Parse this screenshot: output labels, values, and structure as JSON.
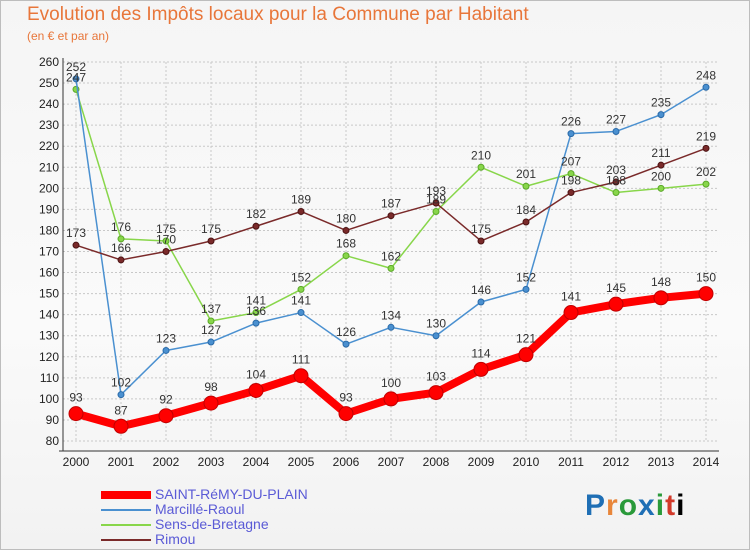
{
  "chart_data": {
    "type": "line",
    "title": "Evolution des Impôts locaux pour la Commune par Habitant",
    "subtitle": "(en € et par an)",
    "x": [
      2000,
      2001,
      2002,
      2003,
      2004,
      2005,
      2006,
      2007,
      2008,
      2009,
      2010,
      2011,
      2012,
      2013,
      2014
    ],
    "ylim": [
      80,
      260
    ],
    "yticks": [
      80,
      90,
      100,
      110,
      120,
      130,
      140,
      150,
      160,
      170,
      180,
      190,
      200,
      210,
      220,
      230,
      240,
      250,
      260
    ],
    "grid": true,
    "series": [
      {
        "name": "SAINT-RéMY-DU-PLAIN",
        "color": "#ff0000",
        "values": [
          93,
          87,
          92,
          98,
          104,
          111,
          93,
          100,
          103,
          114,
          121,
          141,
          145,
          148,
          150
        ]
      },
      {
        "name": "Marcillé-Raoul",
        "color": "#4a90d0",
        "values": [
          252,
          102,
          123,
          127,
          136,
          141,
          126,
          134,
          130,
          146,
          152,
          226,
          227,
          235,
          248
        ]
      },
      {
        "name": "Sens-de-Bretagne",
        "color": "#88d64a",
        "values": [
          247,
          176,
          175,
          137,
          141,
          152,
          168,
          162,
          189,
          210,
          201,
          207,
          198,
          200,
          202
        ]
      },
      {
        "name": "Rimou",
        "color": "#7a2a2a",
        "values": [
          173,
          166,
          170,
          175,
          182,
          189,
          180,
          187,
          193,
          175,
          184,
          198,
          203,
          211,
          219
        ]
      }
    ]
  },
  "logo": [
    "P",
    "r",
    "o",
    "x",
    "i",
    "t",
    "i"
  ]
}
